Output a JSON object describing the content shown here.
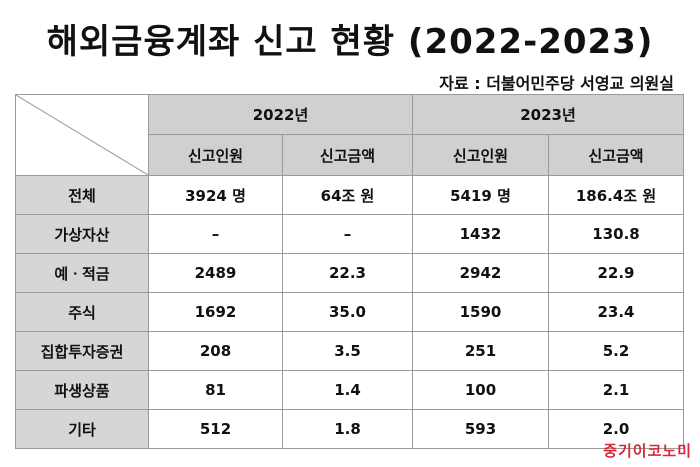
{
  "title": "해외금융계좌 신고 현황 (2022-2023)",
  "source": "자료 : 더불어민주당 서영교 의원실",
  "years": [
    "2022년",
    "2023년"
  ],
  "subheaders": [
    "신고인원",
    "신고금액",
    "신고인원",
    "신고금액"
  ],
  "rows": [
    {
      "label": "전체",
      "cells": [
        "3924 명",
        "64조 원",
        "5419 명",
        "186.4조 원"
      ]
    },
    {
      "label": "가상자산",
      "cells": [
        "–",
        "–",
        "1432",
        "130.8"
      ]
    },
    {
      "label": "예ㆍ적금",
      "cells": [
        "2489",
        "22.3",
        "2942",
        "22.9"
      ]
    },
    {
      "label": "주식",
      "cells": [
        "1692",
        "35.0",
        "1590",
        "23.4"
      ]
    },
    {
      "label": "집합투자증권",
      "cells": [
        "208",
        "3.5",
        "251",
        "5.2"
      ]
    },
    {
      "label": "파생상품",
      "cells": [
        "81",
        "1.4",
        "100",
        "2.1"
      ]
    },
    {
      "label": "기타",
      "cells": [
        "512",
        "1.8",
        "593",
        "2.0"
      ]
    }
  ],
  "watermark": "중기이코노미"
}
